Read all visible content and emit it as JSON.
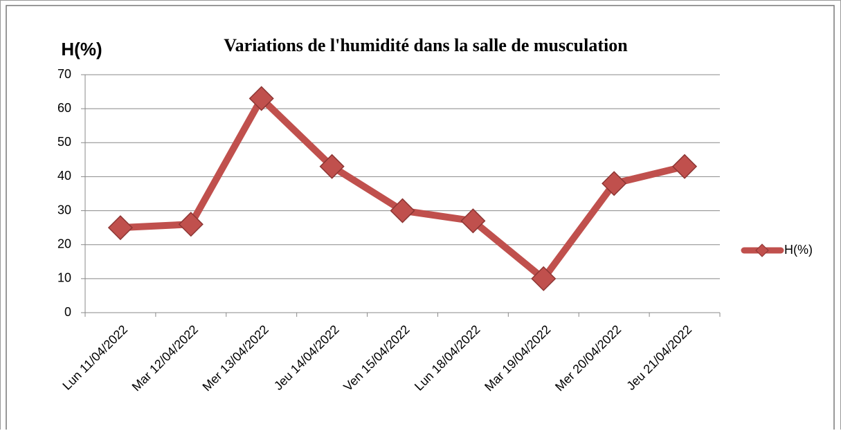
{
  "chart_data": {
    "type": "line",
    "title": "Variations de l'humidité dans la salle de musculation",
    "ylabel": "H(%)",
    "categories": [
      "Lun 11/04/2022",
      "Mar 12/04/2022",
      "Mer 13/04/2022",
      "Jeu 14/04/2022",
      "Ven 15/04/2022",
      "Lun 18/04/2022",
      "Mar 19/04/2022",
      "Mer 20/04/2022",
      "Jeu 21/04/2022"
    ],
    "series": [
      {
        "name": "H(%)",
        "color": "#c0504d",
        "values": [
          25,
          26,
          63,
          43,
          30,
          27,
          10,
          38,
          43
        ]
      }
    ],
    "ylim": [
      0,
      70
    ],
    "yticks": [
      0,
      10,
      20,
      30,
      40,
      50,
      60,
      70
    ],
    "grid": true,
    "legend": "right"
  }
}
